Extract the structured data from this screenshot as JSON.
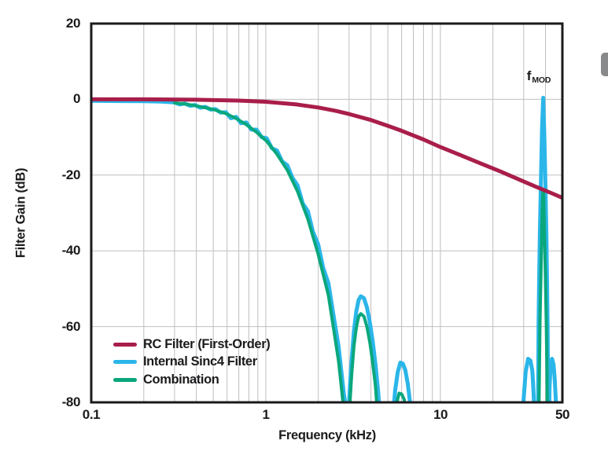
{
  "colors": {
    "grid": "#bfbfc3",
    "axis": "#1a1a1c",
    "text": "#1b1b1d",
    "page_tab": "#87898b",
    "rc": "#a91e4a",
    "sinc4": "#2bb6e9",
    "combination": "#0aa77c"
  },
  "page": {
    "page_tab_icon": "page-edge-tab"
  },
  "chart_data": {
    "type": "line",
    "title": "",
    "xlabel": "Frequency (kHz)",
    "ylabel": "Filter Gain (dB)",
    "x_scale": "log",
    "xlim": [
      0.1,
      50
    ],
    "ylim": [
      -80,
      20
    ],
    "x_ticks": [
      0.1,
      1,
      10,
      50
    ],
    "y_ticks": [
      20,
      0,
      -20,
      -40,
      -60,
      -80
    ],
    "grid": true,
    "legend_position": "lower-left-inside",
    "annotations": [
      {
        "text": "f",
        "sub": "MOD",
        "x_khz": 36.5,
        "y_db": 6
      }
    ],
    "series": [
      {
        "name": "RC Filter (First-Order)",
        "color": "#a91e4a",
        "points": [
          [
            0.1,
            0
          ],
          [
            0.2,
            0
          ],
          [
            0.4,
            -0.1
          ],
          [
            0.7,
            -0.33
          ],
          [
            1,
            -0.64
          ],
          [
            1.5,
            -1.34
          ],
          [
            2,
            -2.15
          ],
          [
            2.5,
            -3.01
          ],
          [
            3,
            -3.87
          ],
          [
            4,
            -5.46
          ],
          [
            5,
            -6.99
          ],
          [
            6,
            -8.3
          ],
          [
            8,
            -10.6
          ],
          [
            10,
            -12.6
          ],
          [
            13,
            -14.7
          ],
          [
            17,
            -16.9
          ],
          [
            22,
            -19
          ],
          [
            28,
            -21.1
          ],
          [
            35,
            -23
          ],
          [
            43,
            -24.7
          ],
          [
            50,
            -26
          ]
        ]
      },
      {
        "name": "Internal Sinc4 Filter",
        "color": "#2bb6e9",
        "points": [
          [
            0.1,
            -0.4
          ],
          [
            0.15,
            -0.45
          ],
          [
            0.2,
            -0.5
          ],
          [
            0.25,
            -0.6
          ],
          [
            0.3,
            -0.8
          ],
          [
            0.321,
            -1.35
          ],
          [
            0.344,
            -1.1
          ],
          [
            0.368,
            -1.7
          ],
          [
            0.393,
            -1.5
          ],
          [
            0.421,
            -2.2
          ],
          [
            0.45,
            -2
          ],
          [
            0.482,
            -2.7
          ],
          [
            0.515,
            -2.6
          ],
          [
            0.551,
            -3.5
          ],
          [
            0.59,
            -3.4
          ],
          [
            0.631,
            -5
          ],
          [
            0.675,
            -4.6
          ],
          [
            0.722,
            -6.3
          ],
          [
            0.773,
            -6.1
          ],
          [
            0.827,
            -8
          ],
          [
            0.885,
            -8
          ],
          [
            0.947,
            -10
          ],
          [
            1.013,
            -10.3
          ],
          [
            1.084,
            -12.9
          ],
          [
            1.16,
            -13.5
          ],
          [
            1.241,
            -16.4
          ],
          [
            1.328,
            -17.4
          ],
          [
            1.421,
            -20.7
          ],
          [
            1.52,
            -22.7
          ],
          [
            1.627,
            -27.5
          ],
          [
            1.741,
            -29.5
          ],
          [
            1.863,
            -35
          ],
          [
            1.993,
            -38.2
          ],
          [
            2.132,
            -44.5
          ],
          [
            2.282,
            -48.5
          ],
          [
            2.442,
            -57
          ],
          [
            2.613,
            -65.3
          ],
          [
            2.796,
            -77.5
          ],
          [
            2.9,
            -82.6
          ],
          [
            2.95,
            -88
          ],
          [
            3,
            -80
          ],
          [
            3.05,
            -74
          ],
          [
            3.1,
            -69
          ],
          [
            3.2,
            -61
          ],
          [
            3.3,
            -56
          ],
          [
            3.4,
            -53
          ],
          [
            3.5,
            -52
          ],
          [
            3.65,
            -52.5
          ],
          [
            3.8,
            -55
          ],
          [
            3.95,
            -59
          ],
          [
            4.1,
            -64
          ],
          [
            4.25,
            -70
          ],
          [
            4.4,
            -77
          ],
          [
            4.5,
            -83
          ],
          [
            4.6,
            -88
          ],
          [
            5.3,
            -88
          ],
          [
            5.35,
            -84
          ],
          [
            5.5,
            -77
          ],
          [
            5.7,
            -72
          ],
          [
            5.9,
            -69.5
          ],
          [
            6.1,
            -69.8
          ],
          [
            6.3,
            -71.5
          ],
          [
            6.5,
            -75
          ],
          [
            6.7,
            -80
          ],
          [
            6.85,
            -86
          ],
          [
            29.4,
            -86
          ],
          [
            30,
            -79
          ],
          [
            30.8,
            -72
          ],
          [
            31.8,
            -68.5
          ],
          [
            32.8,
            -69
          ],
          [
            33.6,
            -71.5
          ],
          [
            33.9,
            -74
          ],
          [
            34.3,
            -79
          ],
          [
            34.55,
            -86
          ],
          [
            36.25,
            -88
          ],
          [
            36.35,
            -74
          ],
          [
            36.5,
            -60
          ],
          [
            36.8,
            -47
          ],
          [
            37.2,
            -34
          ],
          [
            37.7,
            -21
          ],
          [
            38.2,
            -8
          ],
          [
            38.8,
            0.4
          ],
          [
            39.4,
            -9
          ],
          [
            39.95,
            -22
          ],
          [
            40.45,
            -35
          ],
          [
            40.85,
            -48
          ],
          [
            41.15,
            -60
          ],
          [
            41.35,
            -72
          ],
          [
            41.5,
            -85
          ],
          [
            41.9,
            -86
          ],
          [
            42.2,
            -76
          ],
          [
            42.8,
            -70.5
          ],
          [
            43.6,
            -68.5
          ],
          [
            44.5,
            -70
          ],
          [
            45.2,
            -74
          ],
          [
            45.9,
            -80
          ],
          [
            46.3,
            -86
          ]
        ]
      },
      {
        "name": "Combination",
        "color": "#0aa77c",
        "points": [
          [
            0.3,
            -0.95
          ],
          [
            0.344,
            -1.25
          ],
          [
            0.393,
            -1.65
          ],
          [
            0.45,
            -2.2
          ],
          [
            0.515,
            -2.85
          ],
          [
            0.59,
            -3.75
          ],
          [
            0.675,
            -5.05
          ],
          [
            0.773,
            -6.65
          ],
          [
            0.885,
            -8.7
          ],
          [
            1.013,
            -11.1
          ],
          [
            1.16,
            -14.5
          ],
          [
            1.328,
            -18.7
          ],
          [
            1.52,
            -24.3
          ],
          [
            1.741,
            -31.6
          ],
          [
            1.993,
            -40.8
          ],
          [
            2.282,
            -51.7
          ],
          [
            2.442,
            -60.4
          ],
          [
            2.613,
            -69.2
          ],
          [
            2.796,
            -81.8
          ],
          [
            2.85,
            -87
          ],
          [
            3,
            -84
          ],
          [
            3.1,
            -73
          ],
          [
            3.2,
            -65.1
          ],
          [
            3.3,
            -60.3
          ],
          [
            3.4,
            -57.4
          ],
          [
            3.5,
            -56.6
          ],
          [
            3.65,
            -57.3
          ],
          [
            3.8,
            -60.1
          ],
          [
            3.95,
            -64.3
          ],
          [
            4.1,
            -69.6
          ],
          [
            4.25,
            -75.8
          ],
          [
            4.35,
            -82
          ],
          [
            4.45,
            -87
          ],
          [
            5.45,
            -86
          ],
          [
            5.6,
            -80.5
          ],
          [
            5.8,
            -77.6
          ],
          [
            6,
            -77.8
          ],
          [
            6.2,
            -79.2
          ],
          [
            6.4,
            -82.5
          ],
          [
            6.55,
            -86
          ],
          [
            36.6,
            -87
          ],
          [
            36.9,
            -73
          ],
          [
            37.2,
            -59
          ],
          [
            37.7,
            -45.5
          ],
          [
            38.2,
            -32
          ],
          [
            38.55,
            -25.8
          ],
          [
            38.8,
            -23.8
          ],
          [
            39.1,
            -26
          ],
          [
            39.4,
            -33.5
          ],
          [
            39.95,
            -46.6
          ],
          [
            40.45,
            -59.8
          ],
          [
            40.85,
            -73
          ],
          [
            41.05,
            -86
          ]
        ]
      }
    ]
  }
}
